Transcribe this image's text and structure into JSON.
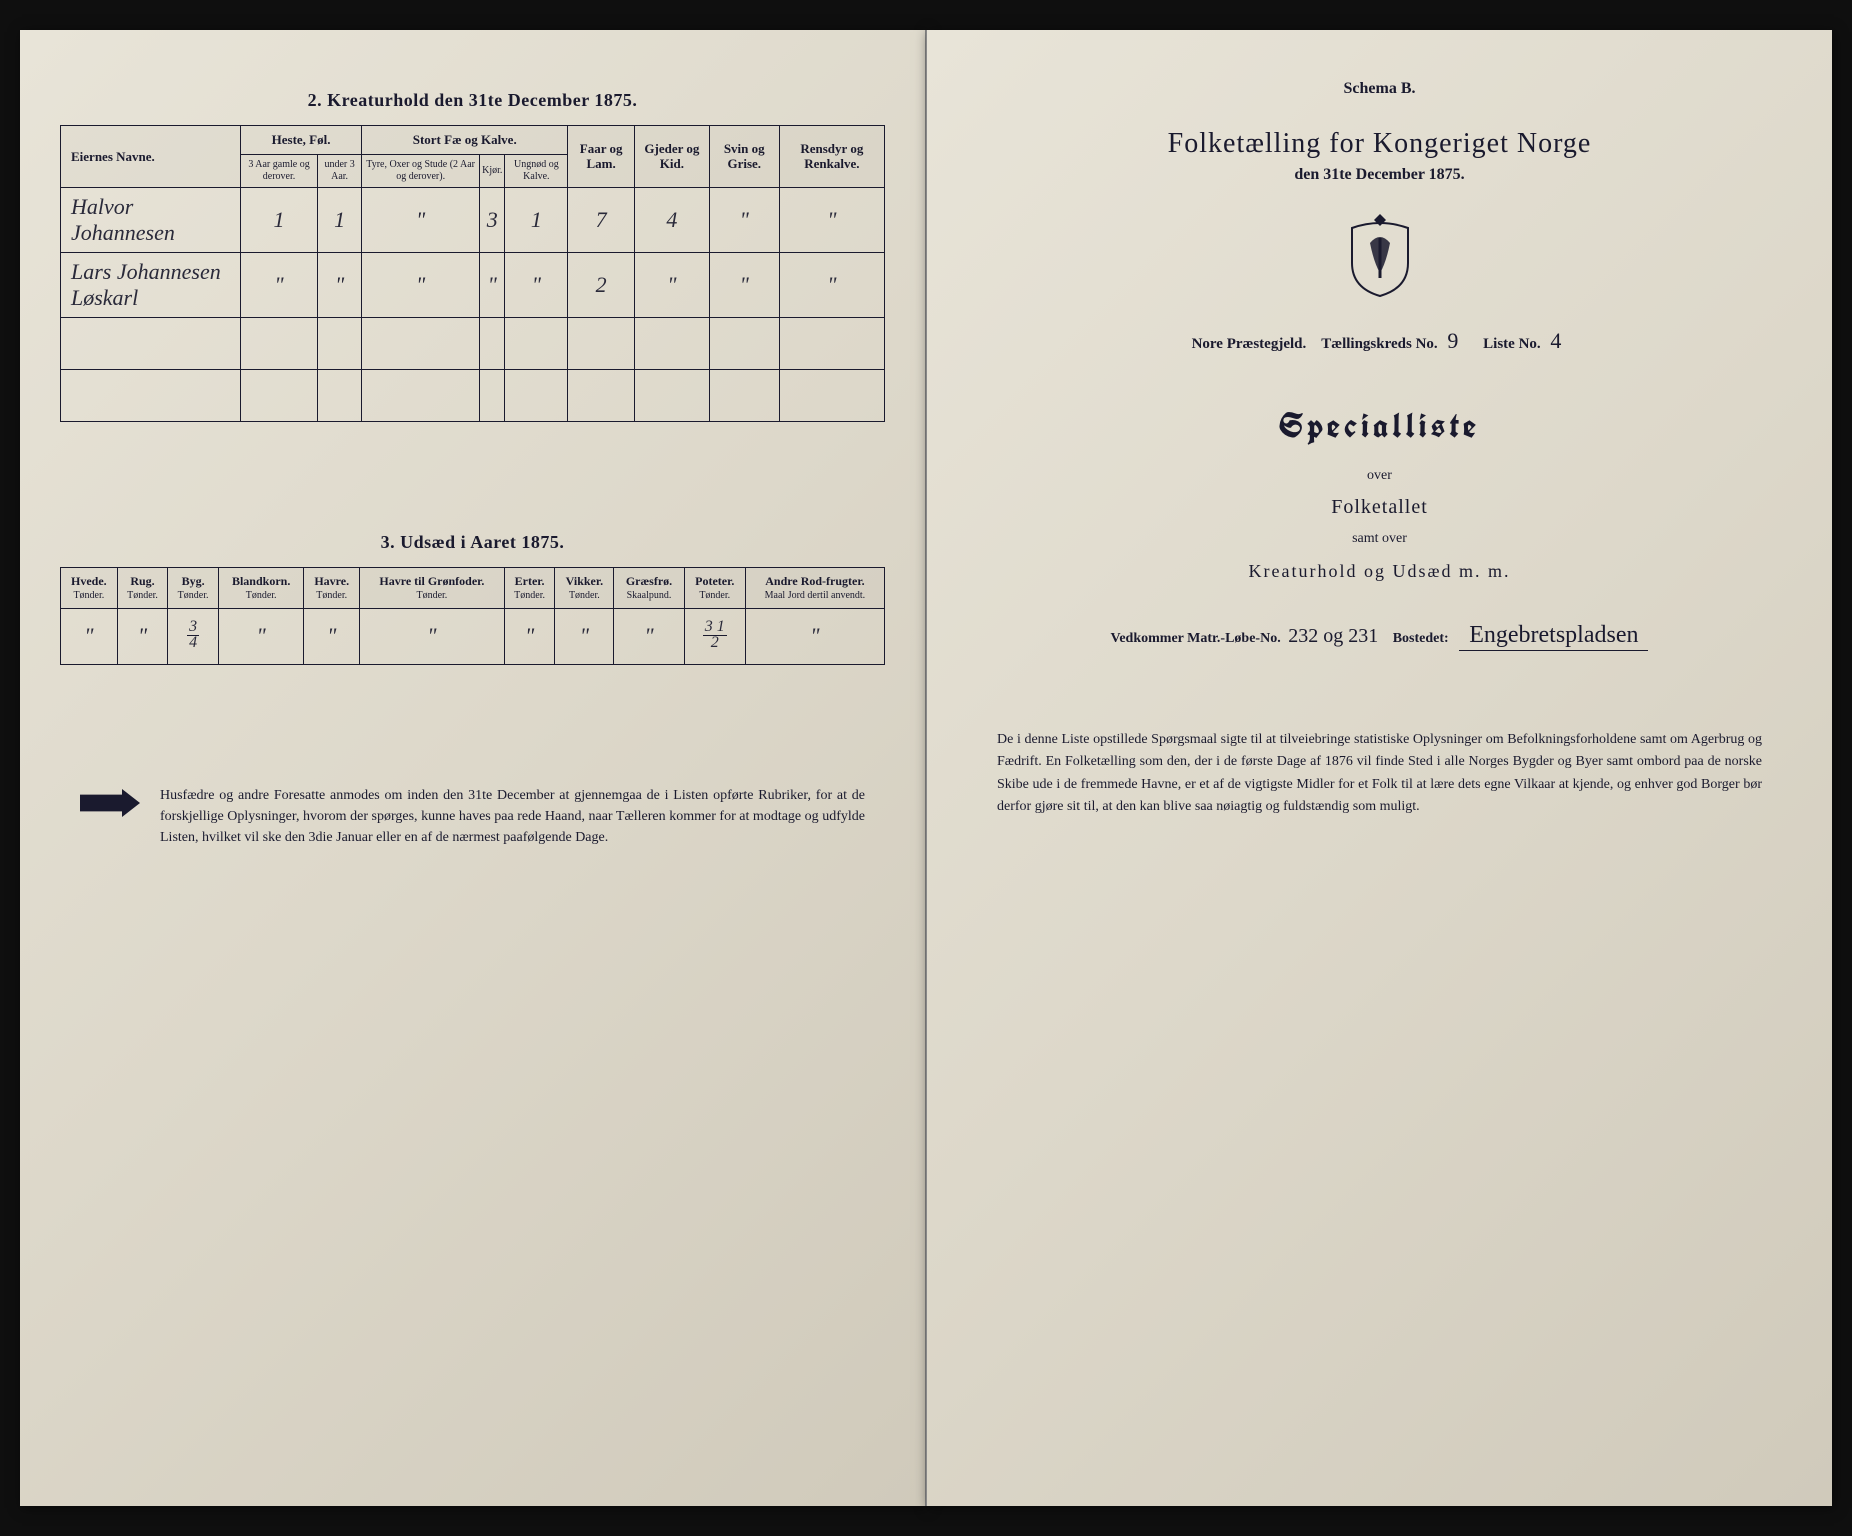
{
  "left": {
    "section2_title": "2.  Kreaturhold den 31te December 1875.",
    "table2": {
      "name_header": "Eiernes Navne.",
      "group_heste": "Heste, Føl.",
      "group_fae": "Stort Fæ og Kalve.",
      "col_faar": "Faar og Lam.",
      "col_gjeder": "Gjeder og Kid.",
      "col_svin": "Svin og Grise.",
      "col_ren": "Rensdyr og Renkalve.",
      "sub_heste1": "3 Aar gamle og derover.",
      "sub_heste2": "under 3 Aar.",
      "sub_fae1": "Tyre, Oxer og Stude (2 Aar og derover).",
      "sub_fae2": "Kjør.",
      "sub_fae3": "Ungnød og Kalve.",
      "rows": [
        {
          "name": "Halvor Johannesen",
          "c": [
            "1",
            "1",
            "\"",
            "3",
            "1",
            "7",
            "4",
            "\"",
            "\""
          ]
        },
        {
          "name": "Lars Johannesen Løskarl",
          "c": [
            "\"",
            "\"",
            "\"",
            "\"",
            "\"",
            "2",
            "\"",
            "\"",
            "\""
          ]
        }
      ]
    },
    "section3_title": "3.  Udsæd i Aaret 1875.",
    "table3": {
      "cols": [
        {
          "h": "Hvede.",
          "u": "Tønder."
        },
        {
          "h": "Rug.",
          "u": "Tønder."
        },
        {
          "h": "Byg.",
          "u": "Tønder."
        },
        {
          "h": "Blandkorn.",
          "u": "Tønder."
        },
        {
          "h": "Havre.",
          "u": "Tønder."
        },
        {
          "h": "Havre til Grønfoder.",
          "u": "Tønder."
        },
        {
          "h": "Erter.",
          "u": "Tønder."
        },
        {
          "h": "Vikker.",
          "u": "Tønder."
        },
        {
          "h": "Græsfrø.",
          "u": "Skaalpund."
        },
        {
          "h": "Poteter.",
          "u": "Tønder."
        },
        {
          "h": "Andre Rod-frugter.",
          "u": "Maal Jord dertil anvendt."
        }
      ],
      "row": [
        "\"",
        "\"",
        {
          "frac": [
            "3",
            "4"
          ]
        },
        "\"",
        "\"",
        "\"",
        "\"",
        "\"",
        "\"",
        {
          "frac": [
            "3 1",
            "2"
          ]
        },
        "\""
      ]
    },
    "note": "Husfædre og andre Foresatte anmodes om inden den 31te December at gjennemgaa de i Listen opførte Rubriker, for at de forskjellige Oplysninger, hvorom der spørges, kunne haves paa rede Haand, naar Tælleren kommer for at modtage og udfylde Listen, hvilket vil ske den 3die Januar eller en af de nærmest paafølgende Dage."
  },
  "right": {
    "schema": "Schema B.",
    "title": "Folketælling for Kongeriget Norge",
    "date_line": "den 31te December 1875.",
    "meta": {
      "praestegjeld_label": "Nore Præstegjeld.",
      "kreds_label": "Tællingskreds No.",
      "kreds_no": "9",
      "liste_label": "Liste No.",
      "liste_no": "4"
    },
    "specialliste": "Specialliste",
    "over": "over",
    "folketallet": "Folketallet",
    "samt_over": "samt over",
    "kreatur": "Kreaturhold og Udsæd m. m.",
    "vedkommer_label": "Vedkommer Matr.-Løbe-No.",
    "matr_no": "232 og 231",
    "bostedet_label": "Bostedet:",
    "bostedet": "Engebretspladsen",
    "bottom": "De i denne Liste opstillede Spørgsmaal sigte til at tilveiebringe statistiske Oplysninger om Befolkningsforholdene samt om Agerbrug og Fædrift.  En Folketælling som den, der i de første Dage af 1876 vil finde Sted i alle Norges Bygder og Byer samt ombord paa de norske Skibe ude i de fremmede Havne, er et af de vigtigste Midler for et Folk til at lære dets egne Vilkaar at kjende, og enhver god Borger bør derfor gjøre sit til, at den kan blive saa nøiagtig og fuldstændig som muligt."
  },
  "colors": {
    "ink": "#1a1a2e",
    "paper": "#ddd8ca"
  }
}
